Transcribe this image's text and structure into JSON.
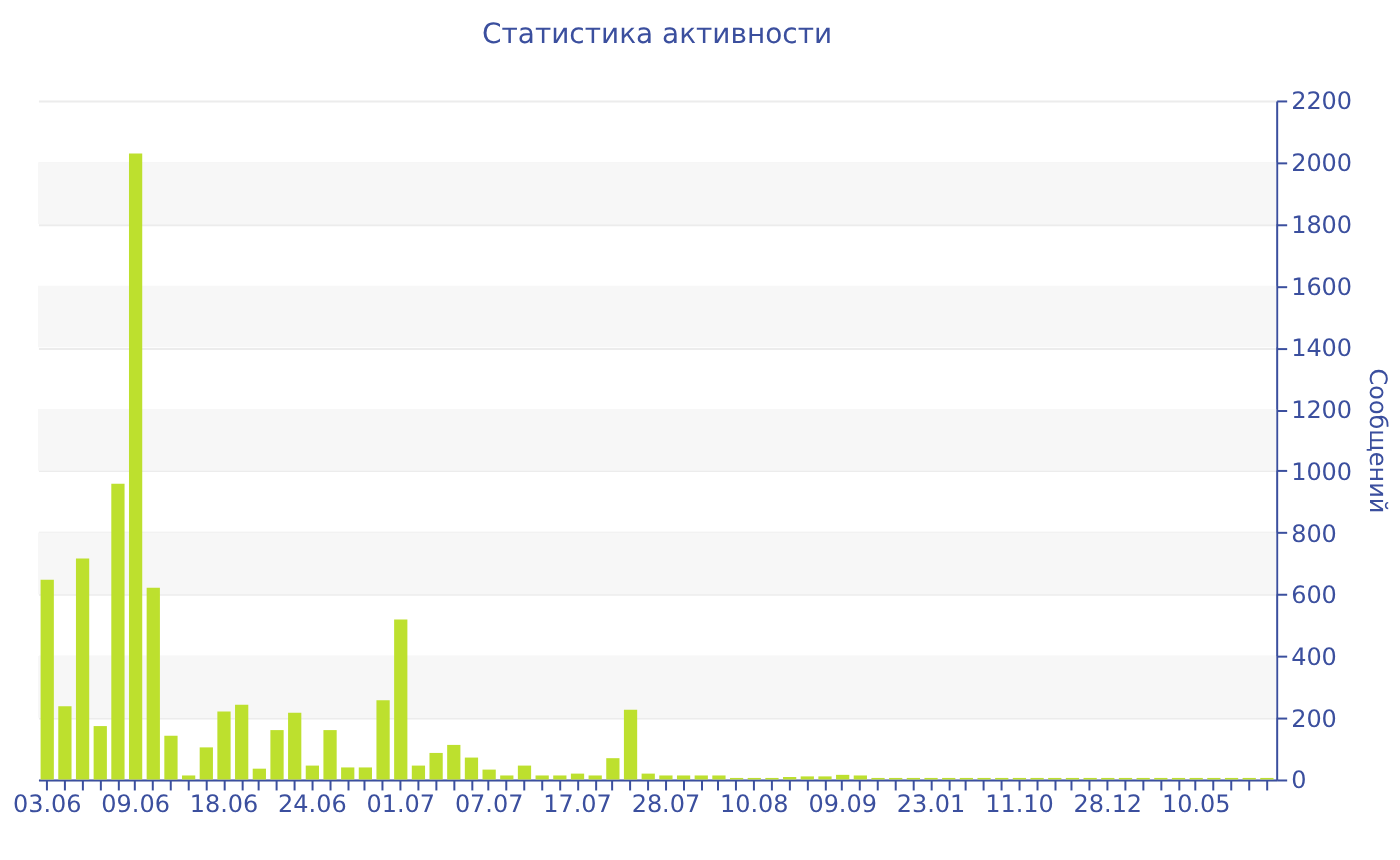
{
  "chart_data": {
    "type": "bar",
    "title": "Статистика активности",
    "ylabel": "Сообщений",
    "categories": [
      "03.06",
      null,
      null,
      null,
      null,
      "09.06",
      null,
      null,
      null,
      null,
      "18.06",
      null,
      null,
      null,
      null,
      "24.06",
      null,
      null,
      null,
      null,
      "01.07",
      null,
      null,
      null,
      null,
      "07.07",
      null,
      null,
      null,
      null,
      "17.07",
      null,
      null,
      null,
      null,
      "28.07",
      null,
      null,
      null,
      null,
      "10.08",
      null,
      null,
      null,
      null,
      "09.09",
      null,
      null,
      null,
      null,
      "23.01",
      null,
      null,
      null,
      null,
      "11.10",
      null,
      null,
      null,
      null,
      "28.12",
      null,
      null,
      null,
      null,
      "10.05",
      null,
      null,
      null,
      null
    ],
    "values": [
      647,
      237,
      716,
      173,
      958,
      2028,
      621,
      142,
      13,
      104,
      220,
      242,
      35,
      160,
      216,
      45,
      160,
      39,
      39,
      257,
      518,
      45,
      86,
      112,
      71,
      32,
      13,
      45,
      13,
      13,
      19,
      13,
      69,
      226,
      19,
      13,
      13,
      13,
      13,
      5,
      5,
      5,
      8,
      10,
      10,
      15,
      13,
      5,
      5,
      5,
      5,
      5,
      5,
      5,
      5,
      5,
      5,
      5,
      5,
      5,
      5,
      5,
      5,
      5,
      5,
      5,
      5,
      5,
      5,
      5
    ],
    "color": "#bde02e",
    "ylim": [
      0,
      2200
    ],
    "yticks": [
      0,
      200,
      400,
      600,
      800,
      1000,
      1200,
      1400,
      1600,
      1800,
      2000,
      2200
    ],
    "grid": "y"
  }
}
